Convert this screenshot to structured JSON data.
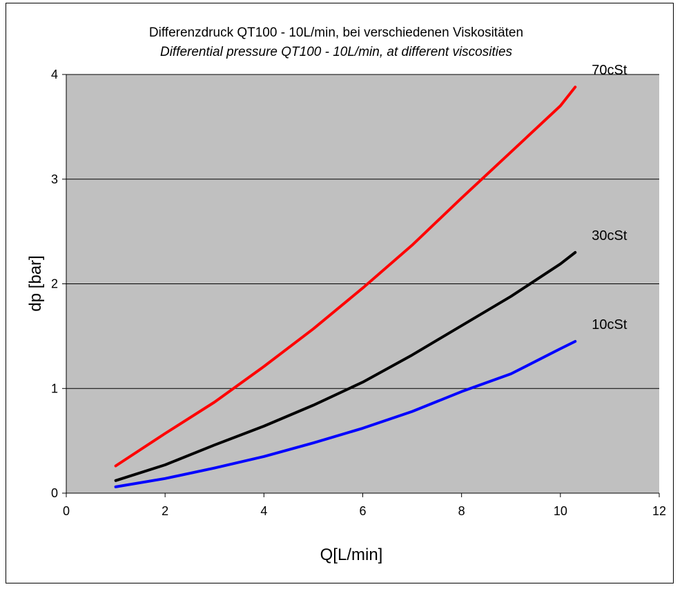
{
  "chart_data": {
    "type": "line",
    "title": "Differenzdruck QT100 - 10L/min, bei verschiedenen Viskositäten",
    "subtitle": "Differential pressure QT100 - 10L/min, at different viscosities",
    "xlabel": "Q[L/min]",
    "ylabel": "dp [bar]",
    "xlim": [
      0,
      12
    ],
    "ylim": [
      0,
      4
    ],
    "x_ticks": [
      0,
      2,
      4,
      6,
      8,
      10,
      12
    ],
    "y_ticks": [
      0,
      1,
      2,
      3,
      4
    ],
    "grid": "horizontal",
    "legend": "none (series labeled at line ends)",
    "plot_background": "#c0c0c0",
    "series": [
      {
        "name": "70cSt",
        "color": "#ff0000",
        "x": [
          1,
          2,
          3,
          4,
          5,
          6,
          7,
          8,
          9,
          10,
          10.3
        ],
        "y": [
          0.26,
          0.57,
          0.87,
          1.21,
          1.57,
          1.96,
          2.37,
          2.82,
          3.26,
          3.7,
          3.88
        ]
      },
      {
        "name": "30cSt",
        "color": "#000000",
        "x": [
          1,
          2,
          3,
          4,
          5,
          6,
          7,
          8,
          9,
          10,
          10.3
        ],
        "y": [
          0.12,
          0.27,
          0.46,
          0.64,
          0.84,
          1.06,
          1.32,
          1.6,
          1.88,
          2.19,
          2.3
        ]
      },
      {
        "name": "10cSt",
        "color": "#0000ff",
        "x": [
          1,
          2,
          3,
          4,
          5,
          6,
          7,
          8,
          9,
          10,
          10.3
        ],
        "y": [
          0.06,
          0.14,
          0.24,
          0.35,
          0.48,
          0.62,
          0.78,
          0.97,
          1.14,
          1.38,
          1.45
        ]
      }
    ]
  }
}
